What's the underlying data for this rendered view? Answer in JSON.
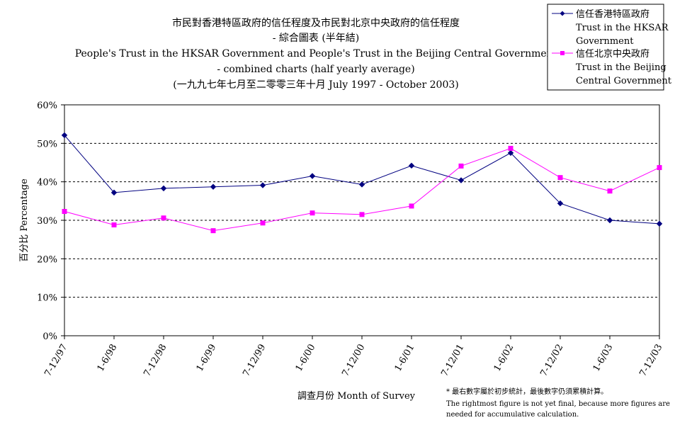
{
  "chart_data": {
    "type": "line",
    "title_lines": [
      "市民對香港特區政府的信任程度及市民對北京中央政府的信任程度",
      "- 綜合圖表 (半年結)",
      "People's Trust in the HKSAR Government and People's Trust in the Beijing Central Government",
      "- combined charts (half yearly average)",
      "(一九九七年七月至二零零三年十月 July 1997 - October 2003)"
    ],
    "xlabel": "調查月份 Month of Survey",
    "ylabel": "百分比 Percentage",
    "ylim": [
      0,
      60
    ],
    "yticks": [
      0,
      10,
      20,
      30,
      40,
      50,
      60
    ],
    "ytick_labels": [
      "0%",
      "10%",
      "20%",
      "30%",
      "40%",
      "50%",
      "60%"
    ],
    "grid": true,
    "legend_position": "top-right",
    "categories": [
      "7-12/97",
      "1-6/98",
      "7-12/98",
      "1-6/99",
      "7-12/99",
      "1-6/00",
      "7-12/00",
      "1-6/01",
      "7-12/01",
      "1-6/02",
      "7-12/02",
      "1-6/03",
      "7-12/03"
    ],
    "series": [
      {
        "name_lines": [
          "信任香港特區政府",
          "Trust in the HKSAR",
          "Government"
        ],
        "color": "#000080",
        "marker": "diamond",
        "values": [
          52.1,
          37.2,
          38.3,
          38.7,
          39.1,
          41.5,
          39.3,
          44.2,
          40.4,
          47.5,
          34.4,
          30.0,
          29.1
        ]
      },
      {
        "name_lines": [
          "信任北京中央政府",
          "Trust in the Beijing",
          "Central Government"
        ],
        "color": "#ff00ff",
        "marker": "square",
        "values": [
          32.3,
          28.8,
          30.6,
          27.3,
          29.3,
          31.9,
          31.5,
          33.7,
          44.1,
          48.7,
          41.1,
          37.6,
          43.7
        ]
      }
    ],
    "footnote_lines": [
      "* 最右數字屬於初步統計，最後數字仍須累積計算。",
      "The rightmost figure is not yet final, because more figures are",
      "needed for accumulative calculation."
    ]
  }
}
